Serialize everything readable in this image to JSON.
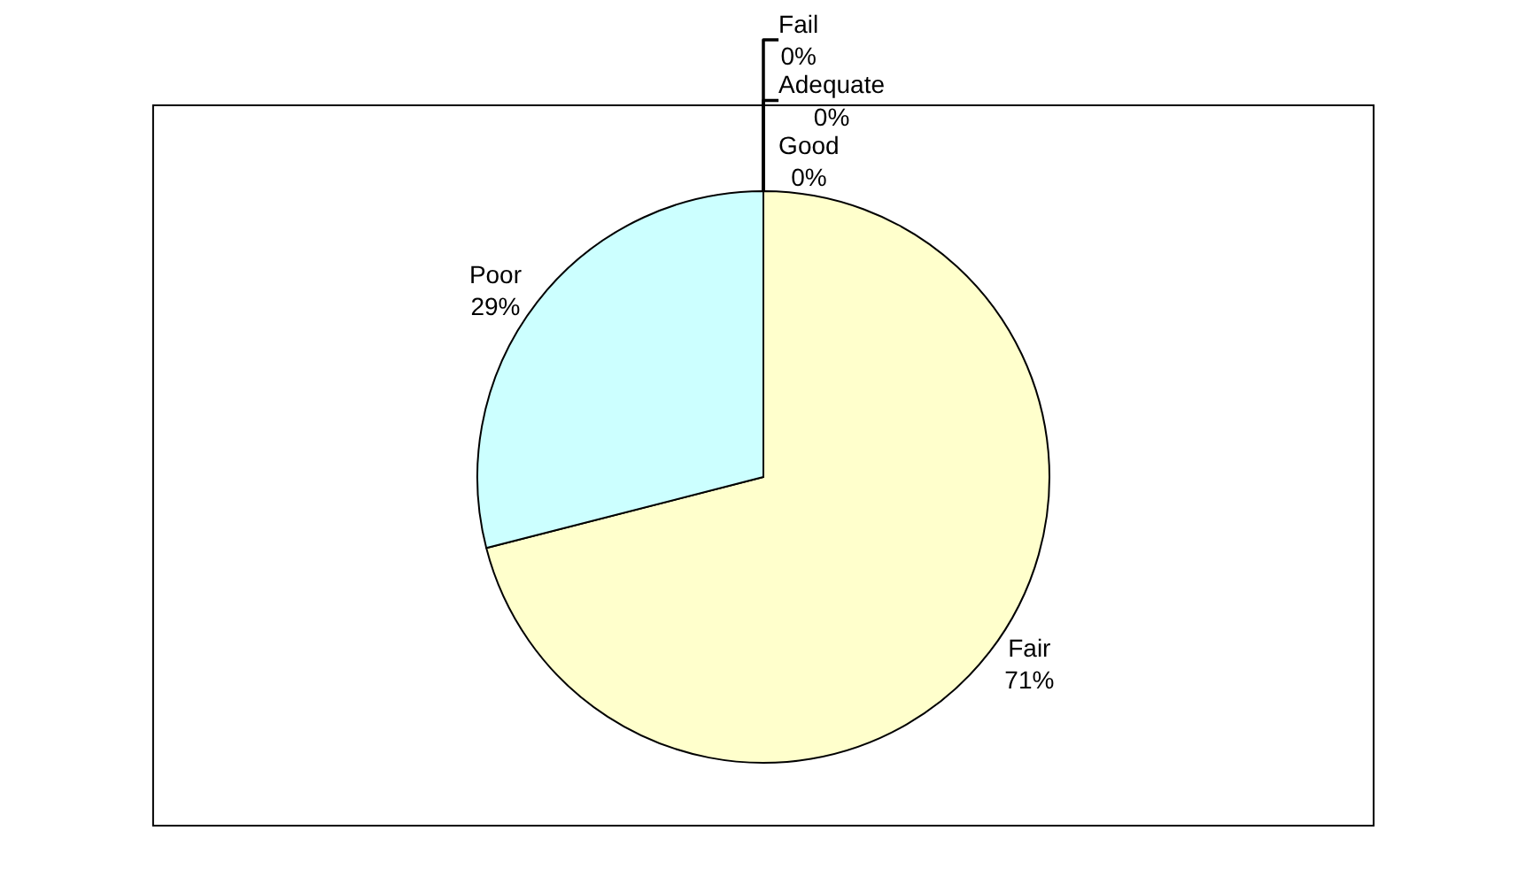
{
  "chart_data": {
    "type": "pie",
    "categories": [
      "Good",
      "Adequate",
      "Fair",
      "Poor",
      "Fail"
    ],
    "values": [
      0,
      0,
      71,
      29,
      0
    ],
    "value_labels": [
      "0%",
      "0%",
      "71%",
      "29%",
      "0%"
    ],
    "colors": [
      "#9999ff",
      "#993366",
      "#ffffcc",
      "#ccffff",
      "#660066"
    ],
    "legend": false
  }
}
